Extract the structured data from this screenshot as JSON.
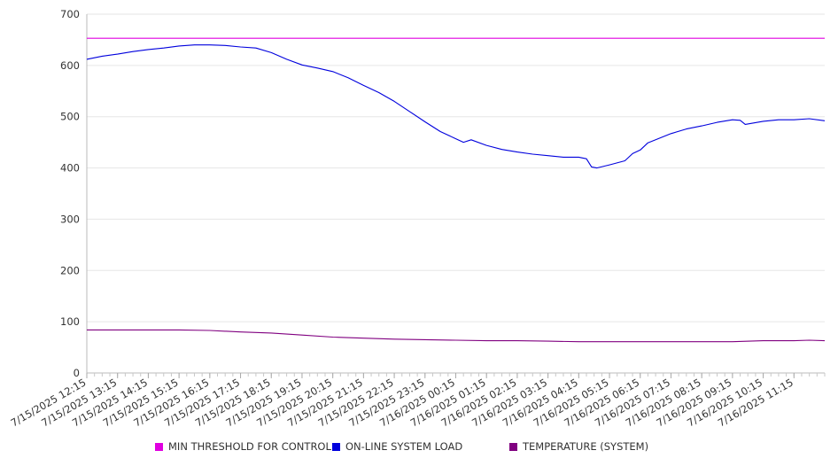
{
  "chart_data": {
    "type": "line",
    "title": "",
    "xlabel": "",
    "ylabel": "",
    "ylim": [
      0,
      700
    ],
    "yticks": [
      0,
      100,
      200,
      300,
      400,
      500,
      600,
      700
    ],
    "grid": true,
    "legend_position": "bottom",
    "x_ticks": [
      "7/15/2025 12:15",
      "7/15/2025 13:15",
      "7/15/2025 14:15",
      "7/15/2025 15:15",
      "7/15/2025 16:15",
      "7/15/2025 17:15",
      "7/15/2025 18:15",
      "7/15/2025 19:15",
      "7/15/2025 20:15",
      "7/15/2025 21:15",
      "7/15/2025 22:15",
      "7/15/2025 23:15",
      "7/16/2025 00:15",
      "7/16/2025 01:15",
      "7/16/2025 02:15",
      "7/16/2025 03:15",
      "7/16/2025 04:15",
      "7/16/2025 05:15",
      "7/16/2025 06:15",
      "7/16/2025 07:15",
      "7/16/2025 08:15",
      "7/16/2025 09:15",
      "7/16/2025 10:15",
      "7/16/2025 11:15"
    ],
    "x_range": [
      "7/15/2025 12:15",
      "7/16/2025 12:15"
    ],
    "series": [
      {
        "name": "MIN THRESHOLD FOR CONTROL",
        "color": "#e000e0",
        "points": [
          [
            "7/15/2025 12:15",
            653
          ],
          [
            "7/16/2025 12:15",
            653
          ]
        ]
      },
      {
        "name": "ON-LINE SYSTEM LOAD",
        "color": "#0000dd",
        "points": [
          [
            "7/15/2025 12:15",
            612
          ],
          [
            "7/15/2025 12:45",
            618
          ],
          [
            "7/15/2025 13:15",
            622
          ],
          [
            "7/15/2025 13:45",
            627
          ],
          [
            "7/15/2025 14:15",
            631
          ],
          [
            "7/15/2025 14:45",
            634
          ],
          [
            "7/15/2025 15:15",
            638
          ],
          [
            "7/15/2025 15:45",
            640
          ],
          [
            "7/15/2025 16:15",
            640
          ],
          [
            "7/15/2025 16:45",
            639
          ],
          [
            "7/15/2025 17:15",
            636
          ],
          [
            "7/15/2025 17:45",
            634
          ],
          [
            "7/15/2025 18:15",
            625
          ],
          [
            "7/15/2025 18:45",
            612
          ],
          [
            "7/15/2025 19:15",
            601
          ],
          [
            "7/15/2025 19:45",
            595
          ],
          [
            "7/15/2025 20:15",
            588
          ],
          [
            "7/15/2025 20:45",
            576
          ],
          [
            "7/15/2025 21:15",
            561
          ],
          [
            "7/15/2025 21:45",
            547
          ],
          [
            "7/15/2025 22:15",
            530
          ],
          [
            "7/15/2025 22:45",
            510
          ],
          [
            "7/15/2025 23:15",
            490
          ],
          [
            "7/15/2025 23:45",
            471
          ],
          [
            "7/16/2025 00:15",
            457
          ],
          [
            "7/16/2025 00:30",
            450
          ],
          [
            "7/16/2025 00:45",
            455
          ],
          [
            "7/16/2025 01:15",
            444
          ],
          [
            "7/16/2025 01:45",
            436
          ],
          [
            "7/16/2025 02:15",
            431
          ],
          [
            "7/16/2025 02:45",
            427
          ],
          [
            "7/16/2025 03:15",
            424
          ],
          [
            "7/16/2025 03:45",
            421
          ],
          [
            "7/16/2025 04:15",
            421
          ],
          [
            "7/16/2025 04:30",
            418
          ],
          [
            "7/16/2025 04:40",
            402
          ],
          [
            "7/16/2025 04:50",
            400
          ],
          [
            "7/16/2025 05:15",
            406
          ],
          [
            "7/16/2025 05:45",
            414
          ],
          [
            "7/16/2025 06:00",
            428
          ],
          [
            "7/16/2025 06:15",
            435
          ],
          [
            "7/16/2025 06:30",
            449
          ],
          [
            "7/16/2025 06:45",
            455
          ],
          [
            "7/16/2025 07:15",
            467
          ],
          [
            "7/16/2025 07:45",
            476
          ],
          [
            "7/16/2025 08:15",
            482
          ],
          [
            "7/16/2025 08:45",
            489
          ],
          [
            "7/16/2025 09:15",
            494
          ],
          [
            "7/16/2025 09:30",
            493
          ],
          [
            "7/16/2025 09:40",
            485
          ],
          [
            "7/16/2025 10:15",
            491
          ],
          [
            "7/16/2025 10:45",
            494
          ],
          [
            "7/16/2025 11:15",
            494
          ],
          [
            "7/16/2025 11:45",
            496
          ],
          [
            "7/16/2025 12:15",
            492
          ]
        ]
      },
      {
        "name": "TEMPERATURE (SYSTEM)",
        "color": "#800080",
        "points": [
          [
            "7/15/2025 12:15",
            84
          ],
          [
            "7/15/2025 13:15",
            84
          ],
          [
            "7/15/2025 15:15",
            84
          ],
          [
            "7/15/2025 16:15",
            83
          ],
          [
            "7/15/2025 17:15",
            80
          ],
          [
            "7/15/2025 18:15",
            78
          ],
          [
            "7/15/2025 19:15",
            74
          ],
          [
            "7/15/2025 20:15",
            70
          ],
          [
            "7/15/2025 21:15",
            68
          ],
          [
            "7/15/2025 22:15",
            66
          ],
          [
            "7/15/2025 23:15",
            65
          ],
          [
            "7/16/2025 00:15",
            64
          ],
          [
            "7/16/2025 01:15",
            63
          ],
          [
            "7/16/2025 02:15",
            63
          ],
          [
            "7/16/2025 03:15",
            62
          ],
          [
            "7/16/2025 04:15",
            61
          ],
          [
            "7/16/2025 05:15",
            61
          ],
          [
            "7/16/2025 06:15",
            61
          ],
          [
            "7/16/2025 07:15",
            61
          ],
          [
            "7/16/2025 08:15",
            61
          ],
          [
            "7/16/2025 09:15",
            61
          ],
          [
            "7/16/2025 10:15",
            63
          ],
          [
            "7/16/2025 11:15",
            63
          ],
          [
            "7/16/2025 11:45",
            64
          ],
          [
            "7/16/2025 12:15",
            63
          ]
        ]
      }
    ]
  }
}
